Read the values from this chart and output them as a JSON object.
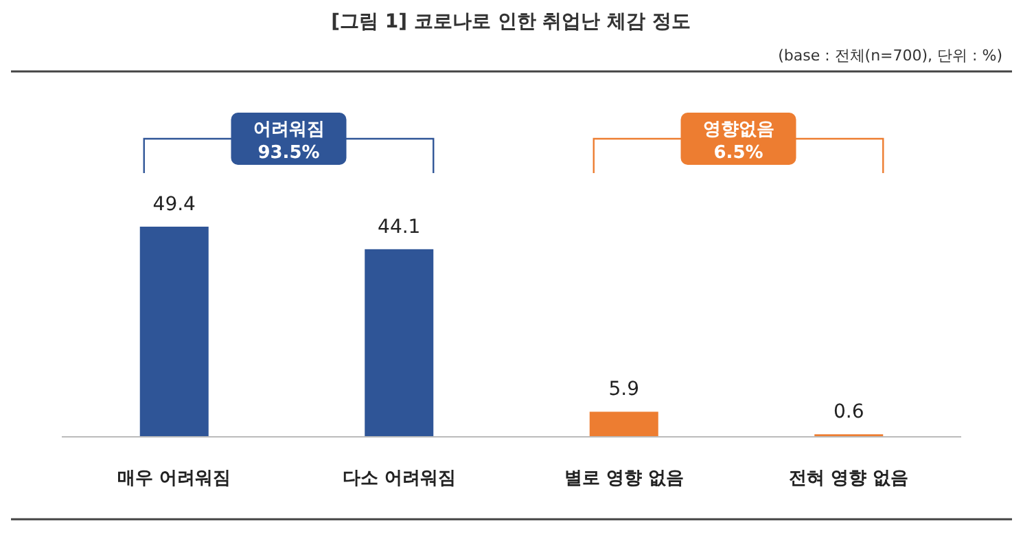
{
  "chart_data": {
    "type": "bar",
    "title": "[그림 1] 코로나로 인한 취업난 체감 정도",
    "subtitle": "(base : 전체(n=700), 단위 : %)",
    "categories": [
      "매우 어려워짐",
      "다소 어려워짐",
      "별로 영향 없음",
      "전혀 영향 없음"
    ],
    "values": [
      49.4,
      44.1,
      5.9,
      0.6
    ],
    "colors": [
      "#2f5597",
      "#2f5597",
      "#ed7d31",
      "#ed7d31"
    ],
    "data_labels": true,
    "annotations": [
      "어려워짐\n93.5%",
      "영향없음\n6.5%"
    ]
  }
}
